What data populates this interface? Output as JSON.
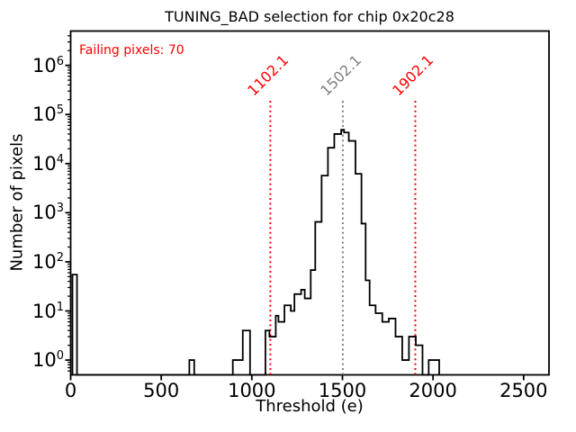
{
  "title": "TUNING_BAD selection for chip 0x20c28",
  "chart_data": {
    "type": "histogram-step",
    "title": "TUNING_BAD selection for chip 0x20c28",
    "xlabel": "Threshold (e)",
    "ylabel": "Number of pixels",
    "yscale": "log",
    "xlim": [
      0,
      2640
    ],
    "ylim": [
      0.5,
      5000000
    ],
    "xticks": [
      0,
      500,
      1000,
      1500,
      2000,
      2500
    ],
    "ytick_exponents": [
      0,
      1,
      2,
      3,
      4,
      5,
      6
    ],
    "grid": false,
    "line_color": "#000000",
    "steps_format": [
      "bin_start_e",
      "bin_end_e",
      "count"
    ],
    "steps": [
      [
        10,
        35,
        55
      ],
      [
        655,
        682,
        1
      ],
      [
        895,
        950,
        1
      ],
      [
        950,
        990,
        4
      ],
      [
        1075,
        1097,
        4
      ],
      [
        1097,
        1132,
        3
      ],
      [
        1132,
        1147,
        8
      ],
      [
        1147,
        1180,
        6
      ],
      [
        1180,
        1215,
        13
      ],
      [
        1215,
        1235,
        10
      ],
      [
        1235,
        1272,
        22
      ],
      [
        1272,
        1292,
        27
      ],
      [
        1292,
        1325,
        18
      ],
      [
        1325,
        1350,
        68
      ],
      [
        1350,
        1385,
        650
      ],
      [
        1385,
        1420,
        5700
      ],
      [
        1420,
        1455,
        21000
      ],
      [
        1455,
        1493,
        40000
      ],
      [
        1493,
        1509,
        49000
      ],
      [
        1509,
        1535,
        43000
      ],
      [
        1535,
        1572,
        29000
      ],
      [
        1572,
        1605,
        6200
      ],
      [
        1605,
        1628,
        600
      ],
      [
        1628,
        1650,
        42
      ],
      [
        1650,
        1683,
        13
      ],
      [
        1683,
        1720,
        9
      ],
      [
        1720,
        1756,
        6
      ],
      [
        1756,
        1793,
        7
      ],
      [
        1793,
        1830,
        3
      ],
      [
        1830,
        1867,
        1
      ],
      [
        1867,
        1905,
        3
      ],
      [
        1905,
        1942,
        2
      ],
      [
        1976,
        2034,
        1
      ]
    ],
    "vlines": [
      {
        "x": 1102.1,
        "label": "1102.1",
        "color": "#ff0000",
        "style": "dotted"
      },
      {
        "x": 1502.1,
        "label": "1502.1",
        "color": "#808080",
        "style": "dotted"
      },
      {
        "x": 1902.1,
        "label": "1902.1",
        "color": "#ff0000",
        "style": "dotted"
      }
    ],
    "annotations": [
      {
        "text": "Failing pixels: 70",
        "color": "#ff0000"
      }
    ],
    "legend": null
  }
}
